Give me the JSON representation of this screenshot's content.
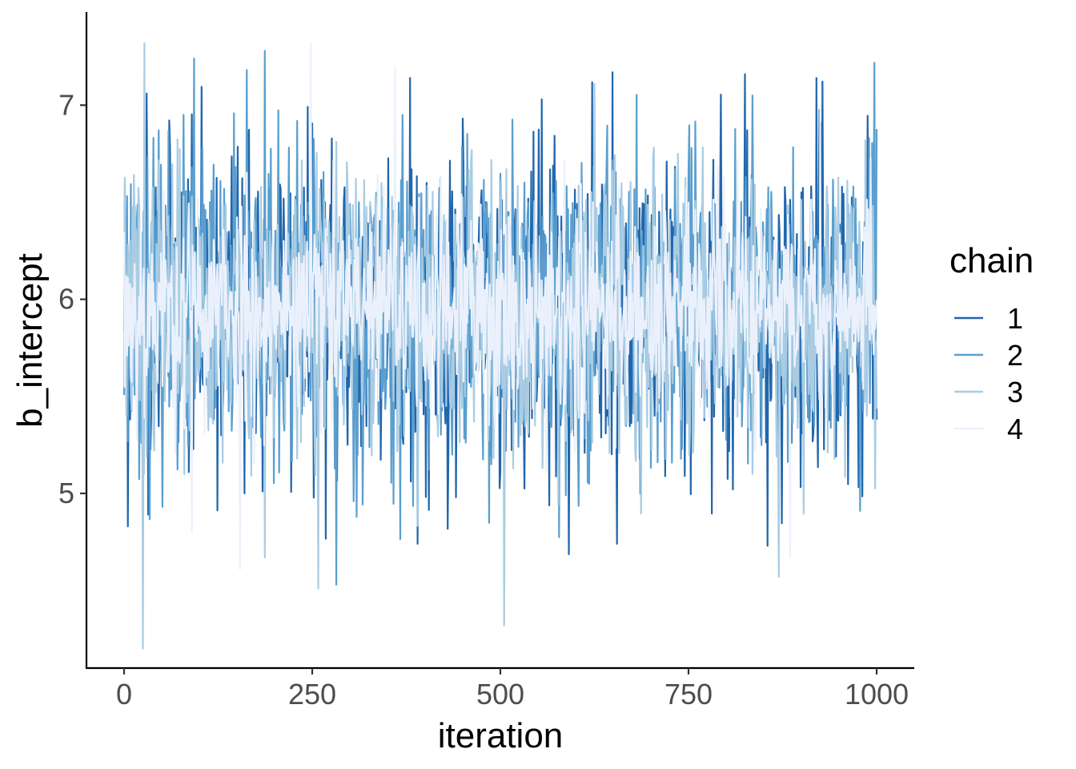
{
  "chart_data": {
    "type": "line",
    "title": "",
    "xlabel": "iteration",
    "ylabel": "b_intercept",
    "xlim": [
      -50,
      1050
    ],
    "ylim": [
      4.1,
      7.48
    ],
    "x_ticks": [
      0,
      250,
      500,
      750,
      1000
    ],
    "x_tick_labels": [
      "0",
      "250",
      "500",
      "750",
      "1000"
    ],
    "y_ticks": [
      5,
      6,
      7
    ],
    "y_tick_labels": [
      "5",
      "6",
      "7"
    ],
    "grid": false,
    "legend": {
      "title": "chain",
      "position": "right"
    },
    "series": [
      {
        "name": "1",
        "color": "#2166ac",
        "seed": 11,
        "sd": 0.42,
        "mean": 5.95,
        "extremes": [
          [
            5,
            4.83
          ],
          [
            30,
            7.06
          ],
          [
            160,
            5.0
          ],
          [
            380,
            7.14
          ],
          [
            390,
            4.74
          ],
          [
            655,
            4.74
          ],
          [
            825,
            7.16
          ],
          [
            855,
            4.73
          ],
          [
            920,
            7.14
          ],
          [
            1000,
            5.38
          ]
        ]
      },
      {
        "name": "2",
        "color": "#5a9fcf",
        "seed": 23,
        "sd": 0.4,
        "mean": 5.95,
        "extremes": [
          [
            1,
            6.6
          ],
          [
            93,
            7.24
          ],
          [
            187,
            7.28
          ],
          [
            282,
            4.53
          ],
          [
            370,
            6.95
          ],
          [
            835,
            7.05
          ],
          [
            978,
            4.91
          ],
          [
            990,
            6.83
          ]
        ]
      },
      {
        "name": "3",
        "color": "#a9cce3",
        "seed": 37,
        "sd": 0.36,
        "mean": 5.95,
        "extremes": [
          [
            27,
            7.32
          ],
          [
            25,
            4.2
          ],
          [
            187,
            4.67
          ],
          [
            258,
            4.51
          ],
          [
            505,
            4.32
          ],
          [
            625,
            7.11
          ],
          [
            835,
            5.1
          ],
          [
            870,
            4.57
          ],
          [
            985,
            6.82
          ]
        ]
      },
      {
        "name": "4",
        "color": "#ebf1fc",
        "seed": 53,
        "sd": 0.28,
        "mean": 5.95,
        "extremes": [
          [
            90,
            4.8
          ],
          [
            154,
            4.61
          ],
          [
            248,
            7.32
          ],
          [
            360,
            7.2
          ],
          [
            885,
            4.67
          ],
          [
            925,
            7.0
          ]
        ]
      }
    ]
  }
}
